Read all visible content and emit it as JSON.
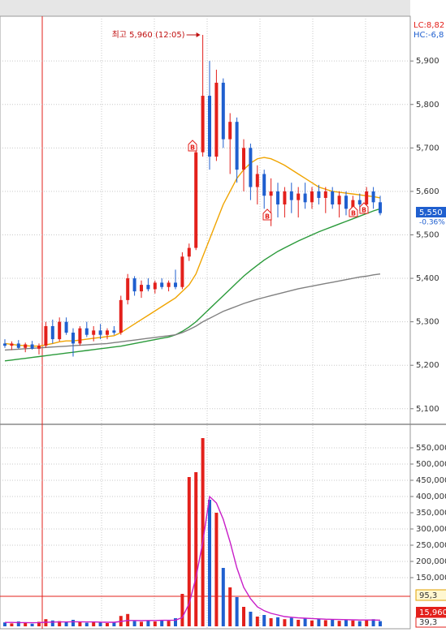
{
  "chart_data": [
    {
      "type": "candlestick",
      "high_label": "최고 5,960 (12:05)",
      "corner_labels": [
        "LC:8,82",
        "HC:-6,8"
      ],
      "last_price_label": "5,550",
      "change_label": "-0.36%",
      "signals": [
        "B",
        "B",
        "B",
        "B"
      ],
      "up_color": "#e3201b",
      "down_color": "#1f5fcf",
      "ylim": [
        5066,
        6003
      ],
      "yticks": [
        {
          "value": 5100,
          "label": "5,100"
        },
        {
          "value": 5200,
          "label": "5,200"
        },
        {
          "value": 5300,
          "label": "5,300"
        },
        {
          "value": 5400,
          "label": "5,400"
        },
        {
          "value": 5500,
          "label": "5,500"
        },
        {
          "value": 5600,
          "label": "5,600"
        },
        {
          "value": 5700,
          "label": "5,700"
        },
        {
          "value": 5800,
          "label": "5,800"
        },
        {
          "value": 5900,
          "label": "5,900"
        }
      ],
      "grid": true,
      "open": [
        5250,
        5245,
        5250,
        5240,
        5248,
        5238,
        5245,
        5290,
        5260,
        5300,
        5275,
        5250,
        5285,
        5270,
        5280,
        5270,
        5280,
        5275,
        5350,
        5400,
        5370,
        5385,
        5375,
        5390,
        5380,
        5390,
        5380,
        5450,
        5470,
        5690,
        5820,
        5680,
        5850,
        5720,
        5760,
        5650,
        5700,
        5610,
        5640,
        5590,
        5600,
        5570,
        5600,
        5580,
        5595,
        5575,
        5600,
        5585,
        5600,
        5570,
        5590,
        5560,
        5580,
        5570,
        5600,
        5575
      ],
      "high": [
        5260,
        5255,
        5258,
        5252,
        5256,
        5250,
        5300,
        5305,
        5310,
        5310,
        5285,
        5290,
        5300,
        5290,
        5295,
        5285,
        5290,
        5360,
        5410,
        5405,
        5395,
        5400,
        5395,
        5400,
        5395,
        5420,
        5460,
        5480,
        5700,
        5960,
        5900,
        5880,
        5860,
        5780,
        5770,
        5720,
        5710,
        5660,
        5650,
        5630,
        5620,
        5610,
        5620,
        5610,
        5620,
        5610,
        5615,
        5610,
        5610,
        5600,
        5600,
        5590,
        5595,
        5610,
        5610,
        5590
      ],
      "low": [
        5240,
        5235,
        5238,
        5230,
        5236,
        5225,
        5240,
        5250,
        5255,
        5270,
        5220,
        5245,
        5265,
        5255,
        5260,
        5260,
        5270,
        5270,
        5340,
        5360,
        5355,
        5370,
        5365,
        5375,
        5370,
        5375,
        5375,
        5440,
        5465,
        5680,
        5650,
        5670,
        5700,
        5640,
        5620,
        5600,
        5580,
        5570,
        5560,
        5520,
        5540,
        5540,
        5550,
        5540,
        5560,
        5560,
        5570,
        5550,
        5560,
        5540,
        5545,
        5550,
        5555,
        5560,
        5560,
        5545
      ],
      "close": [
        5245,
        5250,
        5240,
        5248,
        5238,
        5245,
        5290,
        5260,
        5300,
        5275,
        5250,
        5285,
        5270,
        5280,
        5270,
        5280,
        5275,
        5350,
        5400,
        5370,
        5385,
        5375,
        5390,
        5380,
        5390,
        5380,
        5450,
        5470,
        5690,
        5820,
        5680,
        5850,
        5720,
        5760,
        5650,
        5700,
        5610,
        5640,
        5590,
        5600,
        5570,
        5600,
        5580,
        5595,
        5575,
        5600,
        5585,
        5600,
        5570,
        5590,
        5560,
        5580,
        5570,
        5600,
        5575,
        5550
      ],
      "series": [
        {
          "color": "#f0a400",
          "values": [
            5250,
            5248,
            5246,
            5245,
            5244,
            5244,
            5247,
            5250,
            5254,
            5256,
            5256,
            5258,
            5260,
            5262,
            5264,
            5266,
            5268,
            5275,
            5285,
            5295,
            5305,
            5315,
            5325,
            5335,
            5345,
            5355,
            5370,
            5385,
            5410,
            5450,
            5490,
            5530,
            5570,
            5600,
            5630,
            5650,
            5665,
            5675,
            5678,
            5675,
            5668,
            5660,
            5650,
            5640,
            5630,
            5620,
            5610,
            5605,
            5600,
            5598,
            5596,
            5594,
            5592,
            5590,
            5588,
            5585
          ]
        },
        {
          "color": "#2a9a3a",
          "values": [
            5210,
            5212,
            5214,
            5216,
            5218,
            5220,
            5222,
            5224,
            5226,
            5228,
            5230,
            5232,
            5234,
            5236,
            5238,
            5240,
            5242,
            5244,
            5247,
            5250,
            5253,
            5256,
            5259,
            5262,
            5265,
            5270,
            5278,
            5288,
            5300,
            5315,
            5330,
            5345,
            5360,
            5375,
            5390,
            5405,
            5418,
            5430,
            5442,
            5452,
            5462,
            5470,
            5478,
            5486,
            5493,
            5500,
            5507,
            5513,
            5519,
            5525,
            5531,
            5537,
            5543,
            5549,
            5555,
            5560
          ]
        },
        {
          "color": "#808080",
          "values": [
            5235,
            5236,
            5237,
            5238,
            5239,
            5240,
            5241,
            5242,
            5243,
            5244,
            5245,
            5246,
            5247,
            5248,
            5249,
            5250,
            5252,
            5254,
            5256,
            5258,
            5260,
            5262,
            5264,
            5266,
            5268,
            5270,
            5275,
            5282,
            5290,
            5300,
            5308,
            5316,
            5324,
            5330,
            5336,
            5342,
            5347,
            5352,
            5356,
            5360,
            5364,
            5368,
            5372,
            5376,
            5379,
            5382,
            5385,
            5388,
            5391,
            5394,
            5397,
            5400,
            5403,
            5405,
            5408,
            5410
          ]
        }
      ]
    },
    {
      "type": "bar",
      "value_tags": [
        "95,3",
        "15,960",
        "39,3"
      ],
      "ylim": [
        0,
        592500
      ],
      "yticks": [
        {
          "value": 150000,
          "label": "150,000"
        },
        {
          "value": 200000,
          "label": "200,000"
        },
        {
          "value": 250000,
          "label": "250,000"
        },
        {
          "value": 300000,
          "label": "300,000"
        },
        {
          "value": 350000,
          "label": "350,000"
        },
        {
          "value": 400000,
          "label": "400,000"
        },
        {
          "value": 450000,
          "label": "450,000"
        },
        {
          "value": 500000,
          "label": "500,000"
        },
        {
          "value": 550000,
          "label": "550,000"
        }
      ],
      "grid": true,
      "values": [
        12000,
        9000,
        15000,
        10000,
        8000,
        14000,
        22000,
        18000,
        16000,
        13000,
        20000,
        15000,
        11000,
        14000,
        12000,
        10000,
        13000,
        32000,
        38000,
        16000,
        14000,
        18000,
        15000,
        20000,
        17000,
        25000,
        100000,
        460000,
        475000,
        580000,
        390000,
        350000,
        180000,
        120000,
        90000,
        60000,
        45000,
        30000,
        35000,
        25000,
        28000,
        22000,
        26000,
        20000,
        24000,
        18000,
        22000,
        19000,
        21000,
        17000,
        20000,
        18000,
        16000,
        19000,
        22000,
        15960
      ],
      "series": [
        {
          "color": "#c81ec8",
          "values": [
            12000,
            12000,
            11500,
            11500,
            11000,
            11500,
            12500,
            13000,
            13500,
            13500,
            14000,
            14000,
            13500,
            13500,
            13000,
            12500,
            12500,
            15000,
            18000,
            18000,
            17500,
            18000,
            18000,
            18500,
            18500,
            19000,
            27000,
            70000,
            150000,
            260000,
            400000,
            380000,
            330000,
            260000,
            180000,
            120000,
            85000,
            60000,
            48000,
            40000,
            35000,
            30000,
            28000,
            26000,
            25000,
            24000,
            23000,
            22000,
            21500,
            21000,
            20500,
            20000,
            19500,
            19500,
            19500,
            19000
          ]
        }
      ]
    }
  ]
}
